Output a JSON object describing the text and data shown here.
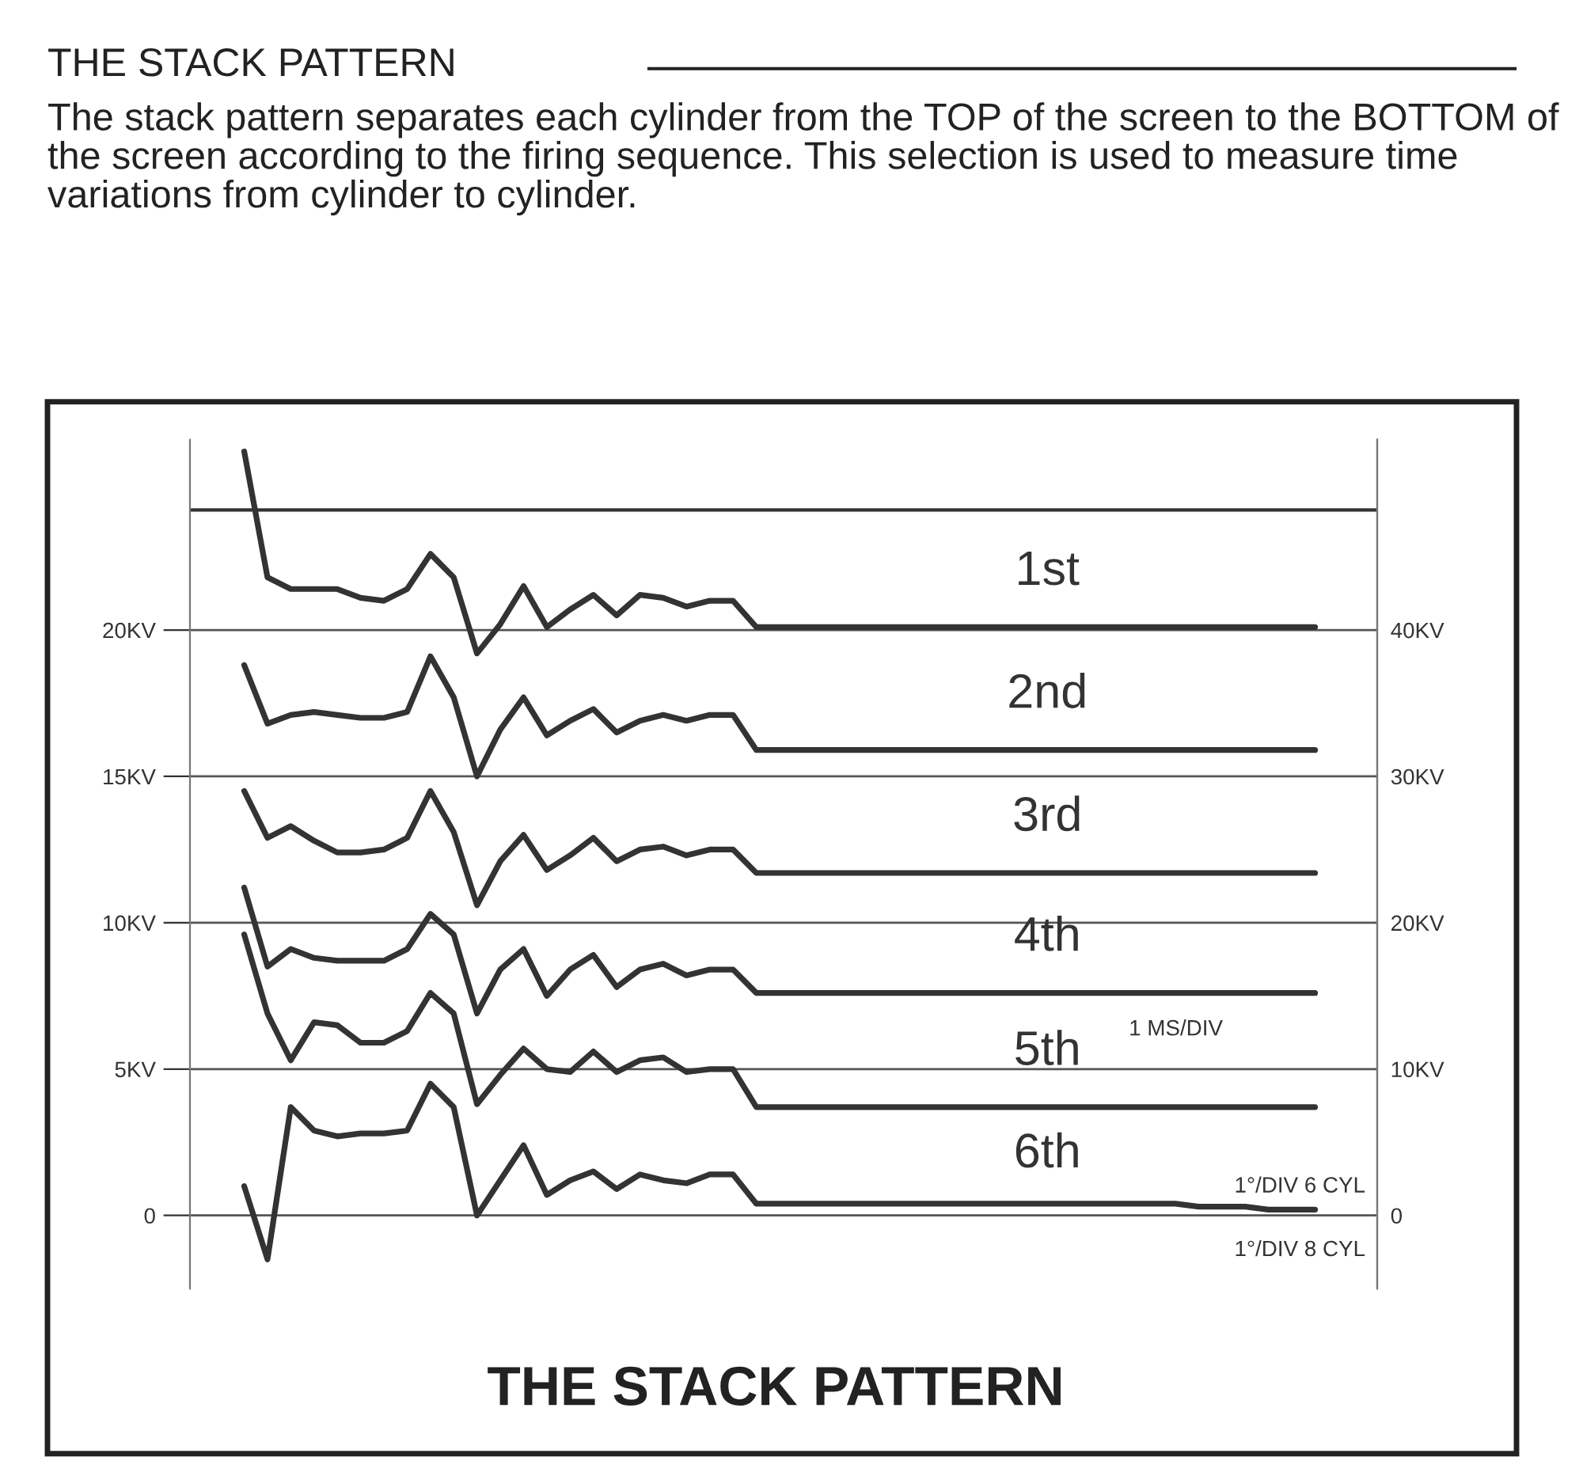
{
  "chart_data": {
    "type": "line",
    "title": "THE STACK PATTERN",
    "subtitle": "The stack pattern separates each cylinder from the TOP of the screen to the BOTTOM of the screen according to the firing sequence. This selection is used to measure time variations from cylinder to cylinder.",
    "categories": [
      null,
      null,
      null,
      null,
      null,
      null,
      null,
      null,
      null,
      null,
      null,
      null,
      null,
      null,
      null,
      null,
      null,
      null,
      null,
      null,
      null,
      null,
      null,
      null,
      null,
      null,
      null,
      null,
      null,
      null,
      null,
      null,
      null,
      null,
      null,
      null,
      null,
      null,
      null,
      null,
      null,
      null,
      null,
      null,
      null,
      null,
      null
    ],
    "series": [
      {
        "name": "1st",
        "color": "#333333",
        "values": [
          26.1,
          21.8,
          21.4,
          21.4,
          21.4,
          21.1,
          21.0,
          21.4,
          22.6,
          21.8,
          19.2,
          20.2,
          21.5,
          20.1,
          20.7,
          21.2,
          20.5,
          21.2,
          21.1,
          20.8,
          21.0,
          21.0,
          20.1,
          20.1,
          20.1,
          20.1,
          20.1,
          20.1,
          20.1,
          20.1,
          20.1,
          20.1,
          20.1,
          20.1,
          20.1,
          20.1,
          20.1,
          20.1,
          20.1,
          20.1,
          20.1,
          20.1,
          20.1,
          20.1,
          20.1,
          20.1,
          20.1
        ]
      },
      {
        "name": "2nd",
        "color": "#333333",
        "values": [
          18.8,
          16.8,
          17.1,
          17.2,
          17.1,
          17.0,
          17.0,
          17.2,
          19.1,
          17.7,
          15.0,
          16.6,
          17.7,
          16.4,
          16.9,
          17.3,
          16.5,
          16.9,
          17.1,
          16.9,
          17.1,
          17.1,
          15.9,
          15.9,
          15.9,
          15.9,
          15.9,
          15.9,
          15.9,
          15.9,
          15.9,
          15.9,
          15.9,
          15.9,
          15.9,
          15.9,
          15.9,
          15.9,
          15.9,
          15.9,
          15.9,
          15.9,
          15.9,
          15.9,
          15.9,
          15.9,
          15.9
        ]
      },
      {
        "name": "3rd",
        "color": "#333333",
        "values": [
          14.5,
          12.9,
          13.3,
          12.8,
          12.4,
          12.4,
          12.5,
          12.9,
          14.5,
          13.1,
          10.6,
          12.1,
          13.0,
          11.8,
          12.3,
          12.9,
          12.1,
          12.5,
          12.6,
          12.3,
          12.5,
          12.5,
          11.7,
          11.7,
          11.7,
          11.7,
          11.7,
          11.7,
          11.7,
          11.7,
          11.7,
          11.7,
          11.7,
          11.7,
          11.7,
          11.7,
          11.7,
          11.7,
          11.7,
          11.7,
          11.7,
          11.7,
          11.7,
          11.7,
          11.7,
          11.7,
          11.7
        ]
      },
      {
        "name": "4th",
        "color": "#333333",
        "values": [
          11.2,
          8.5,
          9.1,
          8.8,
          8.7,
          8.7,
          8.7,
          9.1,
          10.3,
          9.6,
          6.9,
          8.4,
          9.1,
          7.5,
          8.4,
          8.9,
          7.8,
          8.4,
          8.6,
          8.2,
          8.4,
          8.4,
          7.6,
          7.6,
          7.6,
          7.6,
          7.6,
          7.6,
          7.6,
          7.6,
          7.6,
          7.6,
          7.6,
          7.6,
          7.6,
          7.6,
          7.6,
          7.6,
          7.6,
          7.6,
          7.6,
          7.6,
          7.6,
          7.6,
          7.6,
          7.6,
          7.6
        ]
      },
      {
        "name": "5th",
        "color": "#333333",
        "values": [
          9.6,
          6.9,
          5.3,
          6.6,
          6.5,
          5.9,
          5.9,
          6.3,
          7.6,
          6.9,
          3.8,
          4.8,
          5.7,
          5.0,
          4.9,
          5.6,
          4.9,
          5.3,
          5.4,
          4.9,
          5.0,
          5.0,
          3.7,
          3.7,
          3.7,
          3.7,
          3.7,
          3.7,
          3.7,
          3.7,
          3.7,
          3.7,
          3.7,
          3.7,
          3.7,
          3.7,
          3.7,
          3.7,
          3.7,
          3.7,
          3.7,
          3.7,
          3.7,
          3.7,
          3.7,
          3.7,
          3.7
        ]
      },
      {
        "name": "6th",
        "color": "#333333",
        "values": [
          1.0,
          -1.5,
          3.7,
          2.9,
          2.7,
          2.8,
          2.8,
          2.9,
          4.5,
          3.7,
          0.0,
          1.2,
          2.4,
          0.7,
          1.2,
          1.5,
          0.9,
          1.4,
          1.2,
          1.1,
          1.4,
          1.4,
          0.4,
          0.4,
          0.4,
          0.4,
          0.4,
          0.4,
          0.4,
          0.4,
          0.4,
          0.4,
          0.4,
          0.4,
          0.4,
          0.4,
          0.4,
          0.4,
          0.4,
          0.4,
          0.4,
          0.3,
          0.3,
          0.3,
          0.2,
          0.2,
          0.2
        ]
      }
    ],
    "ylim": [
      -2.5,
      26.5
    ],
    "yticks": [
      {
        "value": 0,
        "label": "0"
      },
      {
        "value": 5,
        "label": "5KV"
      },
      {
        "value": 10,
        "label": "10KV"
      },
      {
        "value": 15,
        "label": "15KV"
      },
      {
        "value": 20,
        "label": "20KV"
      }
    ],
    "y2lim": [
      -5,
      53
    ],
    "y2ticks": [
      {
        "value": 0,
        "label": "0"
      },
      {
        "value": 10,
        "label": "10KV"
      },
      {
        "value": 20,
        "label": "20KV"
      },
      {
        "value": 30,
        "label": "30KV"
      },
      {
        "value": 40,
        "label": "40KV"
      }
    ],
    "ref_lines": [
      {
        "axis": "y",
        "value": 24.1,
        "color": "#333333"
      }
    ],
    "grid": "y",
    "legend": false,
    "line_style": "solid",
    "marker": "none",
    "annotations": [
      "1 MS/DIV",
      "1°/DIV 6 CYL",
      "1°/DIV 8 CYL",
      "THE STACK PATTERN"
    ]
  }
}
